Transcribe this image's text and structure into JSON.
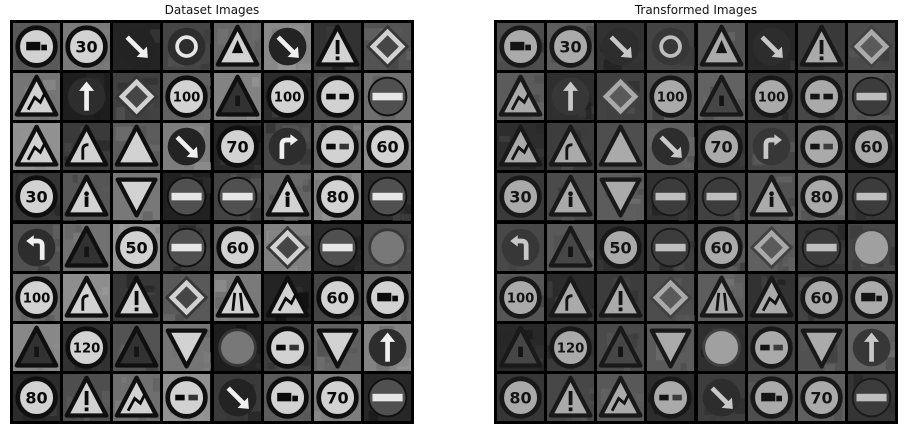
{
  "panels": [
    {
      "title": "Dataset Images",
      "rows": [
        [
          "truck",
          "30",
          "arrow-down-right",
          "roundabout",
          "triangle-arrow",
          "arrow-down-right",
          "triangle-exclaim",
          "diamond"
        ],
        [
          "triangle-road",
          "arrow-up",
          "diamond",
          "100",
          "triangle-dark",
          "100",
          "overtake",
          "no-entry"
        ],
        [
          "triangle-road",
          "triangle-curve",
          "triangle-plain",
          "arrow-down-right",
          "70",
          "turn-right",
          "no-overtake",
          "60"
        ],
        [
          "30",
          "triangle-person",
          "yield",
          "no-entry",
          "no-entry",
          "triangle-person",
          "80",
          "no-entry"
        ],
        [
          "turn-left",
          "triangle-dark",
          "50",
          "no-entry",
          "60",
          "diamond",
          "no-entry",
          "blank"
        ],
        [
          "100",
          "triangle-curve",
          "triangle-exclaim",
          "diamond",
          "triangle-narrow",
          "triangle-road",
          "60",
          "truck"
        ],
        [
          "triangle-dark",
          "120",
          "triangle-dark",
          "yield",
          "blank",
          "no-overtake",
          "yield",
          "arrow-up"
        ],
        [
          "80",
          "triangle-exclaim",
          "triangle-road",
          "no-overtake",
          "arrow-down-right",
          "truck",
          "70",
          "no-entry"
        ]
      ]
    },
    {
      "title": "Transformed Images",
      "rows": [
        [
          "truck",
          "30",
          "arrow-down-right",
          "roundabout",
          "triangle-arrow",
          "arrow-down-right",
          "triangle-exclaim",
          "diamond"
        ],
        [
          "triangle-road",
          "arrow-up",
          "diamond",
          "100",
          "triangle-dark",
          "100",
          "overtake",
          "no-entry"
        ],
        [
          "triangle-road",
          "triangle-curve",
          "triangle-plain",
          "arrow-down-right",
          "70",
          "turn-right",
          "no-overtake",
          "60"
        ],
        [
          "30",
          "triangle-person",
          "yield",
          "no-entry",
          "no-entry",
          "triangle-person",
          "80",
          "no-entry"
        ],
        [
          "turn-left",
          "triangle-dark",
          "50",
          "no-entry",
          "60",
          "diamond",
          "no-entry",
          "blank"
        ],
        [
          "100",
          "triangle-curve",
          "triangle-exclaim",
          "diamond",
          "triangle-narrow",
          "triangle-road",
          "60",
          "truck"
        ],
        [
          "triangle-dark",
          "120",
          "triangle-dark",
          "yield",
          "blank",
          "no-overtake",
          "yield",
          "arrow-up"
        ],
        [
          "80",
          "triangle-exclaim",
          "triangle-road",
          "no-overtake",
          "arrow-down-right",
          "truck",
          "70",
          "no-entry"
        ]
      ]
    }
  ]
}
